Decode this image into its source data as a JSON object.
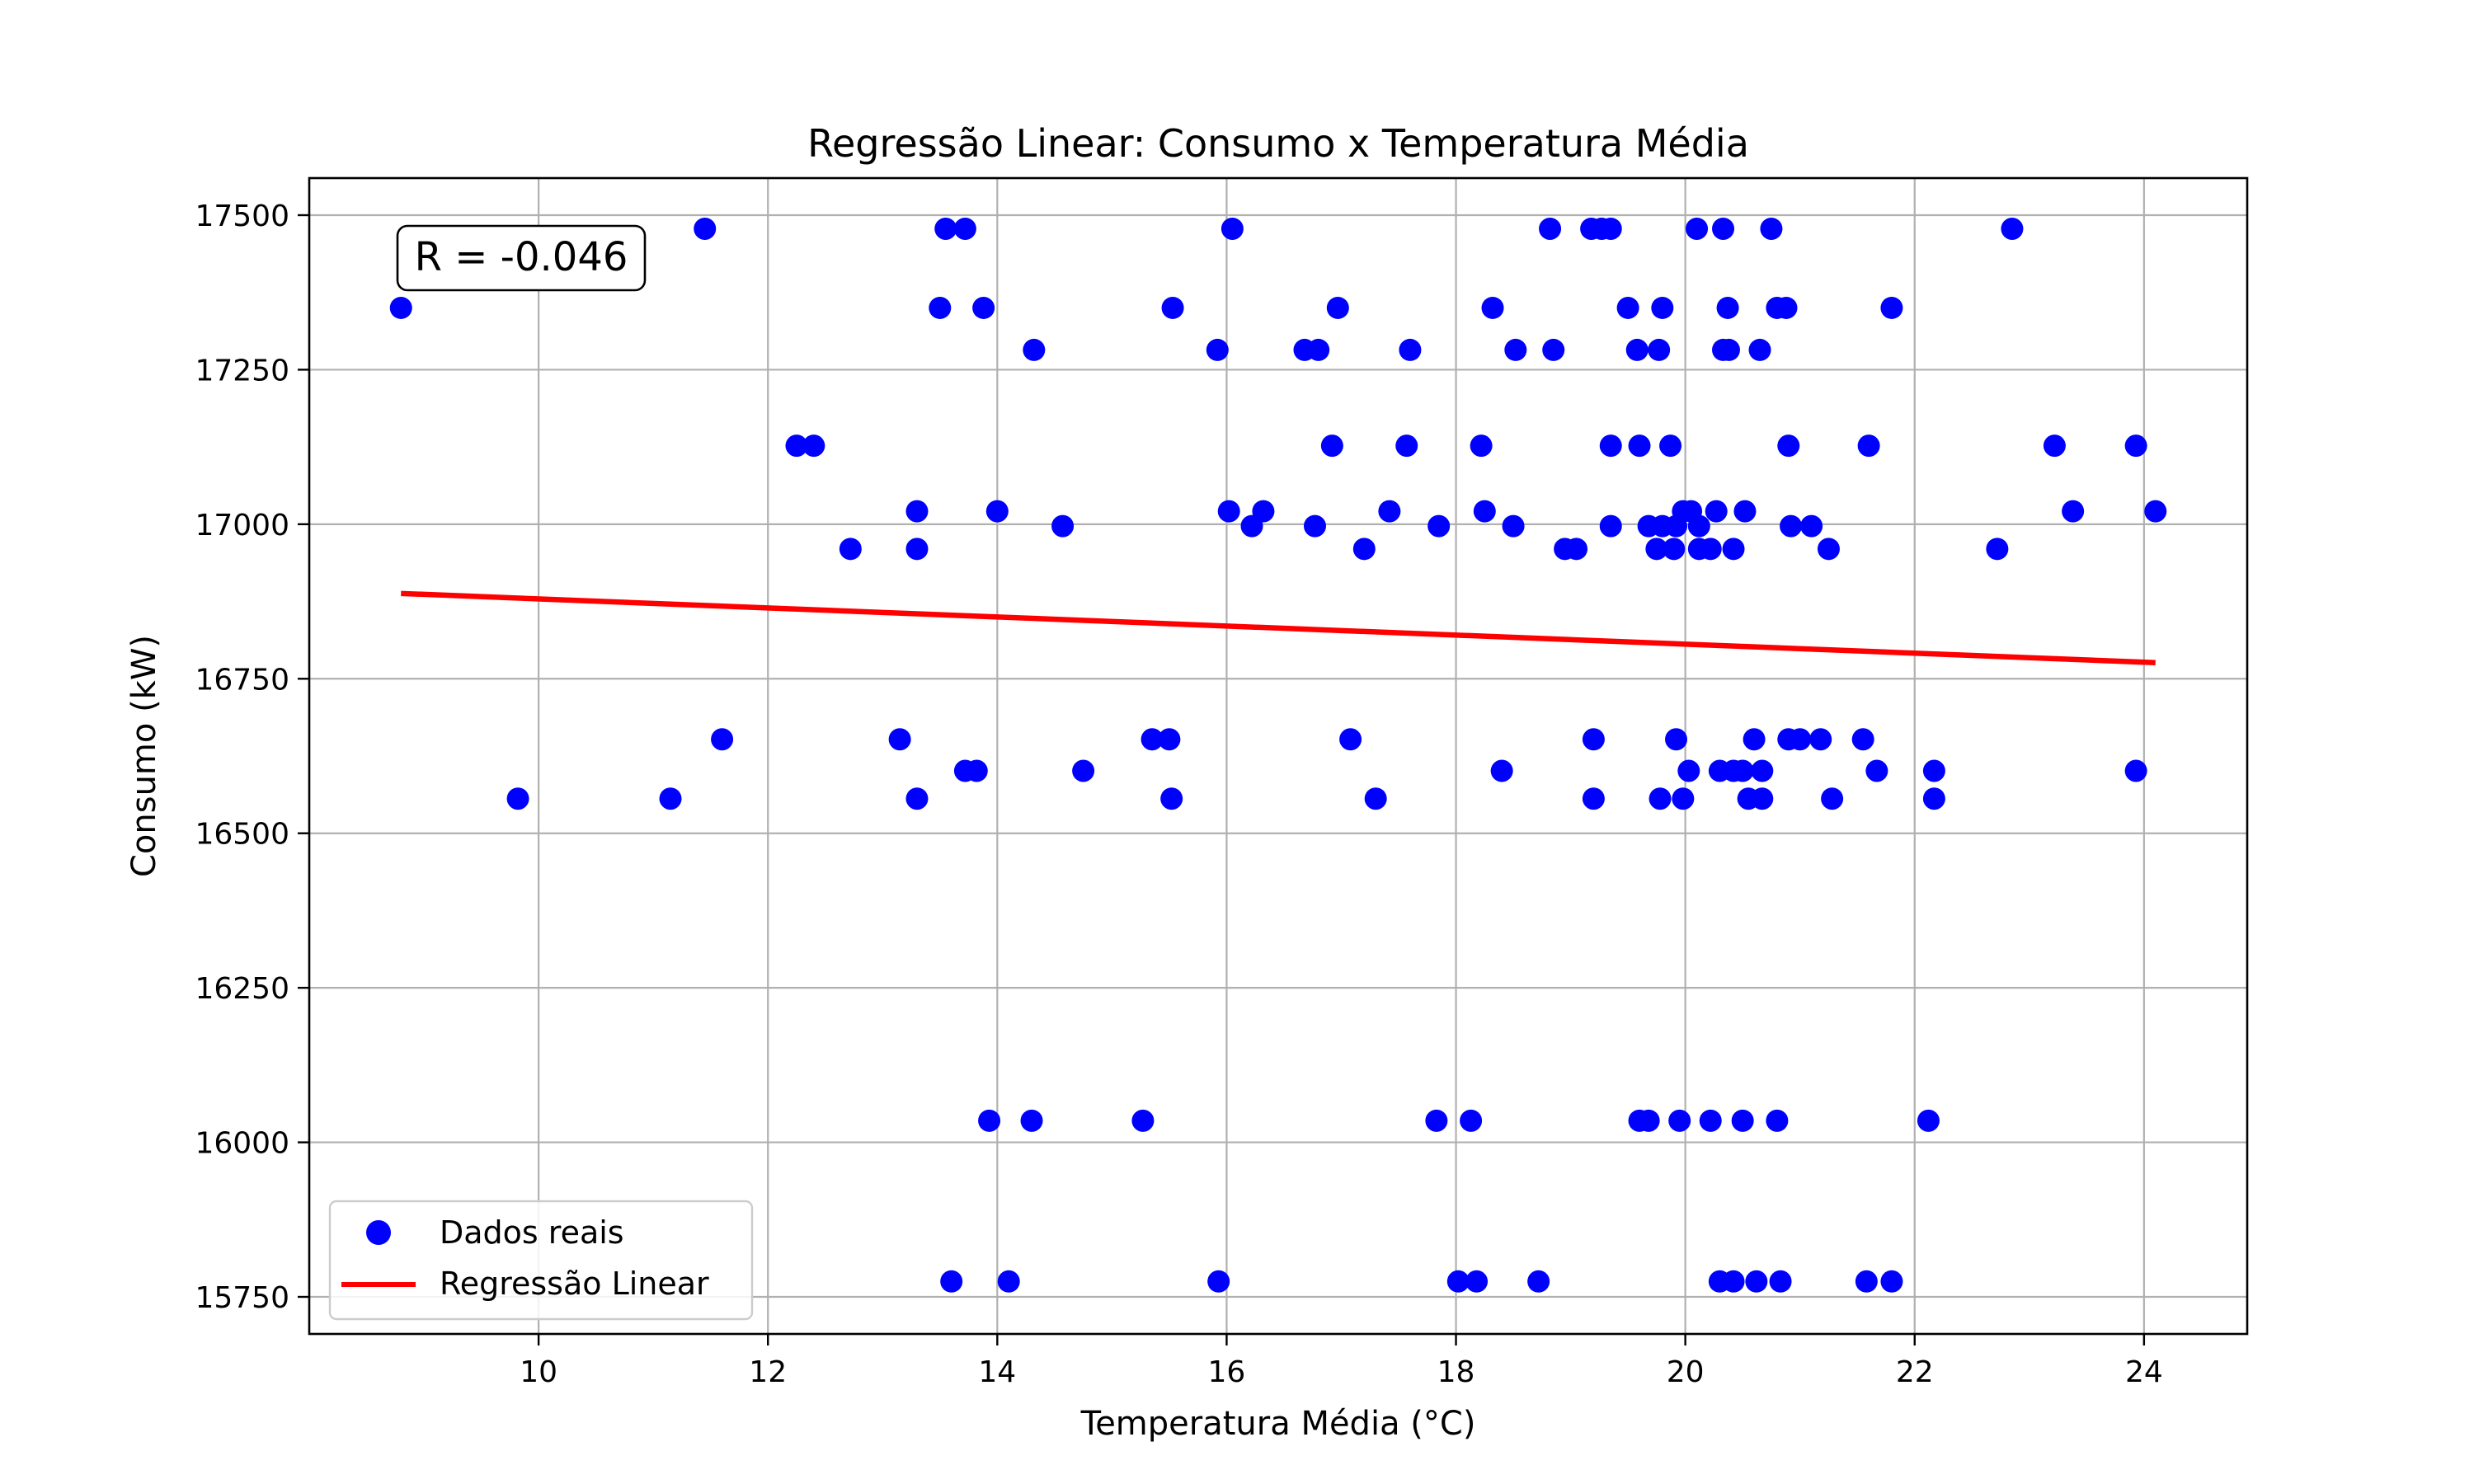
{
  "chart_data": {
    "type": "scatter",
    "title": "Regressão Linear: Consumo x Temperatura Média",
    "xlabel": "Temperatura Média (°C)",
    "ylabel": "Consumo (kW)",
    "xlim": [
      8.0,
      24.9
    ],
    "ylim": [
      15690,
      17560
    ],
    "xticks": [
      10,
      12,
      14,
      16,
      18,
      20,
      22,
      24
    ],
    "yticks": [
      15750,
      16000,
      16250,
      16500,
      16750,
      17000,
      17250,
      17500
    ],
    "grid": true,
    "legend_position": "lower-left",
    "annotation": "R = -0.046",
    "colors": {
      "points": "#0000ff",
      "line": "#ff0000",
      "grid": "#b0b0b0"
    },
    "series": [
      {
        "name": "Dados reais",
        "kind": "scatter",
        "points": [
          [
            8.8,
            17350
          ],
          [
            11.45,
            17478
          ],
          [
            13.55,
            17478
          ],
          [
            13.72,
            17478
          ],
          [
            16.05,
            17478
          ],
          [
            18.82,
            17478
          ],
          [
            19.18,
            17478
          ],
          [
            19.27,
            17478
          ],
          [
            19.35,
            17478
          ],
          [
            20.1,
            17478
          ],
          [
            20.33,
            17478
          ],
          [
            20.75,
            17478
          ],
          [
            22.85,
            17478
          ],
          [
            13.5,
            17350
          ],
          [
            13.88,
            17350
          ],
          [
            15.53,
            17350
          ],
          [
            16.97,
            17350
          ],
          [
            18.32,
            17350
          ],
          [
            19.5,
            17350
          ],
          [
            19.8,
            17350
          ],
          [
            20.37,
            17350
          ],
          [
            20.8,
            17350
          ],
          [
            20.88,
            17350
          ],
          [
            21.8,
            17350
          ],
          [
            14.32,
            17282
          ],
          [
            15.92,
            17282
          ],
          [
            16.68,
            17282
          ],
          [
            16.8,
            17282
          ],
          [
            17.6,
            17282
          ],
          [
            18.52,
            17282
          ],
          [
            18.85,
            17282
          ],
          [
            19.58,
            17282
          ],
          [
            19.77,
            17282
          ],
          [
            20.33,
            17282
          ],
          [
            20.38,
            17282
          ],
          [
            20.65,
            17282
          ],
          [
            12.25,
            17127
          ],
          [
            12.4,
            17127
          ],
          [
            16.92,
            17127
          ],
          [
            17.57,
            17127
          ],
          [
            18.22,
            17127
          ],
          [
            19.35,
            17127
          ],
          [
            19.6,
            17127
          ],
          [
            19.87,
            17127
          ],
          [
            20.9,
            17127
          ],
          [
            21.6,
            17127
          ],
          [
            23.22,
            17127
          ],
          [
            23.93,
            17127
          ],
          [
            13.3,
            17021
          ],
          [
            14.0,
            17021
          ],
          [
            16.02,
            17021
          ],
          [
            16.32,
            17021
          ],
          [
            17.42,
            17021
          ],
          [
            18.25,
            17021
          ],
          [
            19.98,
            17021
          ],
          [
            20.05,
            17021
          ],
          [
            20.27,
            17021
          ],
          [
            20.52,
            17021
          ],
          [
            23.38,
            17021
          ],
          [
            24.1,
            17021
          ],
          [
            14.57,
            16997
          ],
          [
            16.22,
            16997
          ],
          [
            16.77,
            16997
          ],
          [
            17.85,
            16997
          ],
          [
            18.5,
            16997
          ],
          [
            19.35,
            16997
          ],
          [
            19.68,
            16997
          ],
          [
            19.8,
            16997
          ],
          [
            19.92,
            16997
          ],
          [
            20.12,
            16997
          ],
          [
            20.92,
            16997
          ],
          [
            21.1,
            16997
          ],
          [
            12.72,
            16960
          ],
          [
            13.3,
            16960
          ],
          [
            17.2,
            16960
          ],
          [
            18.95,
            16960
          ],
          [
            19.05,
            16960
          ],
          [
            19.75,
            16960
          ],
          [
            19.9,
            16960
          ],
          [
            20.12,
            16960
          ],
          [
            20.22,
            16960
          ],
          [
            20.42,
            16960
          ],
          [
            21.25,
            16960
          ],
          [
            22.72,
            16960
          ],
          [
            11.6,
            16652
          ],
          [
            13.15,
            16652
          ],
          [
            15.35,
            16652
          ],
          [
            15.5,
            16652
          ],
          [
            17.08,
            16652
          ],
          [
            19.2,
            16652
          ],
          [
            19.92,
            16652
          ],
          [
            20.6,
            16652
          ],
          [
            20.9,
            16652
          ],
          [
            21.0,
            16652
          ],
          [
            21.18,
            16652
          ],
          [
            21.55,
            16652
          ],
          [
            13.72,
            16601
          ],
          [
            13.82,
            16601
          ],
          [
            14.75,
            16601
          ],
          [
            18.4,
            16601
          ],
          [
            20.03,
            16601
          ],
          [
            20.3,
            16601
          ],
          [
            20.42,
            16601
          ],
          [
            20.5,
            16601
          ],
          [
            20.67,
            16601
          ],
          [
            21.67,
            16601
          ],
          [
            22.17,
            16601
          ],
          [
            23.93,
            16601
          ],
          [
            9.82,
            16556
          ],
          [
            11.15,
            16556
          ],
          [
            13.3,
            16556
          ],
          [
            15.52,
            16556
          ],
          [
            17.3,
            16556
          ],
          [
            19.2,
            16556
          ],
          [
            19.78,
            16556
          ],
          [
            19.98,
            16556
          ],
          [
            20.55,
            16556
          ],
          [
            20.67,
            16556
          ],
          [
            21.28,
            16556
          ],
          [
            22.17,
            16556
          ],
          [
            13.93,
            16035
          ],
          [
            14.3,
            16035
          ],
          [
            15.27,
            16035
          ],
          [
            17.83,
            16035
          ],
          [
            18.13,
            16035
          ],
          [
            19.6,
            16035
          ],
          [
            19.68,
            16035
          ],
          [
            19.95,
            16035
          ],
          [
            20.22,
            16035
          ],
          [
            20.5,
            16035
          ],
          [
            20.8,
            16035
          ],
          [
            22.12,
            16035
          ],
          [
            13.6,
            15775
          ],
          [
            14.1,
            15775
          ],
          [
            15.93,
            15775
          ],
          [
            18.02,
            15775
          ],
          [
            18.18,
            15775
          ],
          [
            18.72,
            15775
          ],
          [
            20.3,
            15775
          ],
          [
            20.42,
            15775
          ],
          [
            20.62,
            15775
          ],
          [
            20.83,
            15775
          ],
          [
            21.58,
            15775
          ],
          [
            21.8,
            15775
          ]
        ]
      },
      {
        "name": "Regressão Linear",
        "kind": "line",
        "points": [
          [
            8.8,
            16888
          ],
          [
            24.1,
            16776
          ]
        ]
      }
    ]
  }
}
